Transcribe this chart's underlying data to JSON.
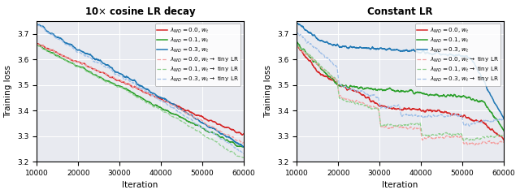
{
  "title_left": "10$\\times$ cosine LR decay",
  "title_right": "Constant LR",
  "xlabel": "Iteration",
  "ylabel": "Training loss",
  "xlim": [
    10000,
    60000
  ],
  "ylim": [
    3.2,
    3.75
  ],
  "yticks": [
    3.2,
    3.3,
    3.4,
    3.5,
    3.6,
    3.7
  ],
  "xticks": [
    10000,
    20000,
    30000,
    40000,
    50000,
    60000
  ],
  "colors": {
    "red": "#d62728",
    "green": "#2ca02c",
    "blue": "#1f77b4",
    "red_light": "#f4a0a0",
    "green_light": "#90d090",
    "blue_light": "#a0c0e8"
  },
  "legend_labels_solid": [
    "$\\lambda_{WD} = 0.0$, $w_t$",
    "$\\lambda_{WD} = 0.1$, $w_t$",
    "$\\lambda_{WD} = 0.3$, $w_t$"
  ],
  "legend_labels_dashed": [
    "$\\lambda_{WD} = 0.0$, $w_t \\rightarrow$ tiny LR",
    "$\\lambda_{WD} = 0.1$, $w_t \\rightarrow$ tiny LR",
    "$\\lambda_{WD} = 0.3$, $w_t \\rightarrow$ tiny LR"
  ],
  "background_color": "#e8eaf0",
  "seed": 42,
  "n_points": 1000
}
